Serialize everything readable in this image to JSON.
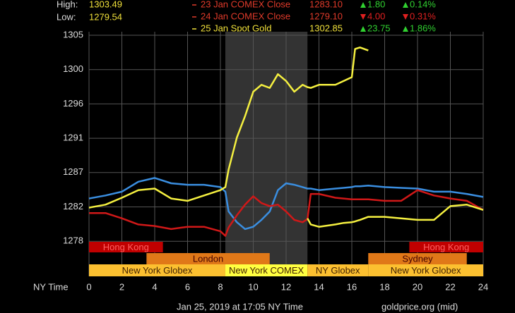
{
  "chart_data": {
    "type": "line",
    "header": {
      "high_label": "High:",
      "high": "1303.49",
      "low_label": "Low:",
      "low": "1279.54"
    },
    "legend_rows": [
      {
        "name": "23 Jan COMEX Close",
        "close": "1283.10",
        "change": "1.80",
        "pct": "0.14%",
        "dir": "up",
        "text_color": "#e03a2a"
      },
      {
        "name": "24 Jan COMEX Close",
        "close": "1279.10",
        "change": "4.00",
        "pct": "0.31%",
        "dir": "down",
        "text_color": "#e03a2a"
      },
      {
        "name": "25 Jan Spot Gold",
        "close": "1302.85",
        "change": "23.75",
        "pct": "1.86%",
        "dir": "up",
        "text_color": "#f0e03a"
      }
    ],
    "x_label": "NY Time",
    "xlim": [
      0,
      24
    ],
    "xticks": [
      0,
      2,
      4,
      6,
      8,
      10,
      12,
      14,
      16,
      18,
      20,
      22,
      24
    ],
    "ylim": [
      1273.4,
      1305
    ],
    "yticks": [
      1305,
      {
        "value": 1300.5,
        "label": "1300"
      },
      1296,
      {
        "value": 1291.5,
        "label": "1291"
      },
      1287,
      {
        "value": 1282.5,
        "label": "1282"
      },
      1278
    ],
    "grid": true,
    "x": [
      0,
      1,
      2,
      3,
      4,
      5,
      6,
      7,
      8,
      8.3,
      8.5,
      9,
      9.5,
      10,
      10.5,
      11,
      11.5,
      12,
      12.5,
      13,
      13.3,
      13.5,
      14,
      15,
      15.5,
      16,
      16.2,
      16.5,
      17,
      18,
      19,
      20,
      21,
      22,
      23,
      24
    ],
    "series": [
      {
        "color": "#3a8ee0",
        "values": [
          1283.6,
          1284.0,
          1284.5,
          1285.8,
          1286.3,
          1285.6,
          1285.4,
          1285.4,
          1285.1,
          1284.5,
          1281.9,
          1280.5,
          1279.6,
          1279.9,
          1280.8,
          1281.9,
          1284.7,
          1285.6,
          1285.4,
          1285.1,
          1284.9,
          1284.9,
          1284.7,
          1284.9,
          1285.0,
          1285.1,
          1285.2,
          1285.2,
          1285.3,
          1285.1,
          1285.0,
          1284.9,
          1284.5,
          1284.5,
          1284.2,
          1283.8
        ]
      },
      {
        "color": "#d01818",
        "values": [
          1281.7,
          1281.7,
          1281.0,
          1280.2,
          1280.0,
          1279.6,
          1279.9,
          1279.9,
          1279.3,
          1278.7,
          1279.8,
          1281.4,
          1282.8,
          1283.9,
          1283.0,
          1282.6,
          1282.8,
          1281.9,
          1280.8,
          1280.5,
          1280.9,
          1284.2,
          1284.2,
          1283.7,
          1283.6,
          1283.5,
          1283.5,
          1283.5,
          1283.5,
          1283.3,
          1283.3,
          1284.7,
          1284.0,
          1283.6,
          1283.3,
          1282.1
        ]
      },
      {
        "color": "#f5f040",
        "values": [
          1282.4,
          1282.8,
          1283.7,
          1284.7,
          1284.9,
          1283.6,
          1283.3,
          1284.0,
          1284.7,
          1285.1,
          1287.4,
          1291.6,
          1294.4,
          1297.6,
          1298.5,
          1298.1,
          1299.9,
          1299.0,
          1297.6,
          1298.5,
          1298.2,
          1298.1,
          1298.5,
          1298.5,
          1299.0,
          1299.5,
          1303.2,
          1303.4,
          1303.0,
          null,
          null,
          null,
          null,
          null,
          null,
          null
        ]
      },
      {
        "color": "#f5f040",
        "values": [
          null,
          null,
          null,
          null,
          null,
          null,
          null,
          null,
          null,
          null,
          null,
          null,
          null,
          null,
          null,
          null,
          null,
          null,
          null,
          null,
          1281.0,
          1280.2,
          1279.9,
          1280.2,
          1280.4,
          1280.5,
          1280.6,
          1280.8,
          1281.2,
          1281.2,
          1281.0,
          1280.8,
          1280.8,
          1282.6,
          1282.8,
          1282.1
        ]
      }
    ],
    "sessions": [
      {
        "label": "Hong Kong",
        "start": 0,
        "end": 4.5,
        "row": 0,
        "color": "#c00000",
        "text_color": "#ff6060"
      },
      {
        "label": "Hong Kong",
        "start": 19.5,
        "end": 24,
        "row": 0,
        "color": "#c00000",
        "text_color": "#ff6060"
      },
      {
        "label": "London",
        "start": 3.5,
        "end": 11,
        "row": 1,
        "color": "#e07818",
        "text_color": "#400000"
      },
      {
        "label": "Sydney",
        "start": 17,
        "end": 23,
        "row": 1,
        "color": "#e07818",
        "text_color": "#400000"
      },
      {
        "label": "New York Globex",
        "start": 0,
        "end": 8.3,
        "row": 2,
        "color": "#fcc030",
        "text_color": "#402000"
      },
      {
        "label": "New York COMEX",
        "start": 8.3,
        "end": 13.3,
        "row": 2,
        "color": "#ffff40",
        "text_color": "#402000",
        "shade": true
      },
      {
        "label": "NY Globex",
        "start": 13.3,
        "end": 17,
        "row": 2,
        "color": "#fcc030",
        "text_color": "#402000"
      },
      {
        "label": "New York Globex",
        "start": 17,
        "end": 24,
        "row": 2,
        "color": "#fcc030",
        "text_color": "#402000"
      }
    ],
    "footer_date": "Jan 25, 2019 at 17:05 NY Time",
    "footer_source": "goldprice.org (mid)"
  }
}
